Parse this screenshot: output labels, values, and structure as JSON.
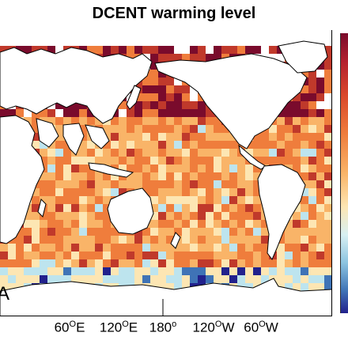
{
  "title": "DCENT warming level",
  "panel_letter": "A",
  "lon_labels": [
    {
      "deg": "60",
      "hemi": "E"
    },
    {
      "deg": "120",
      "hemi": "E"
    },
    {
      "deg": "180",
      "hemi": ""
    },
    {
      "deg": "120",
      "hemi": "W"
    },
    {
      "deg": "60",
      "hemi": "W"
    }
  ],
  "colors": {
    "dark_red": "#7a0b2c",
    "red": "#c0392b",
    "orange": "#ef7d3c",
    "light_orange": "#f9b468",
    "pale": "#fde6b3",
    "light_blue": "#bde4ee",
    "blue": "#3f73b6",
    "dark_blue": "#22218c",
    "land_edge": "#000000"
  }
}
